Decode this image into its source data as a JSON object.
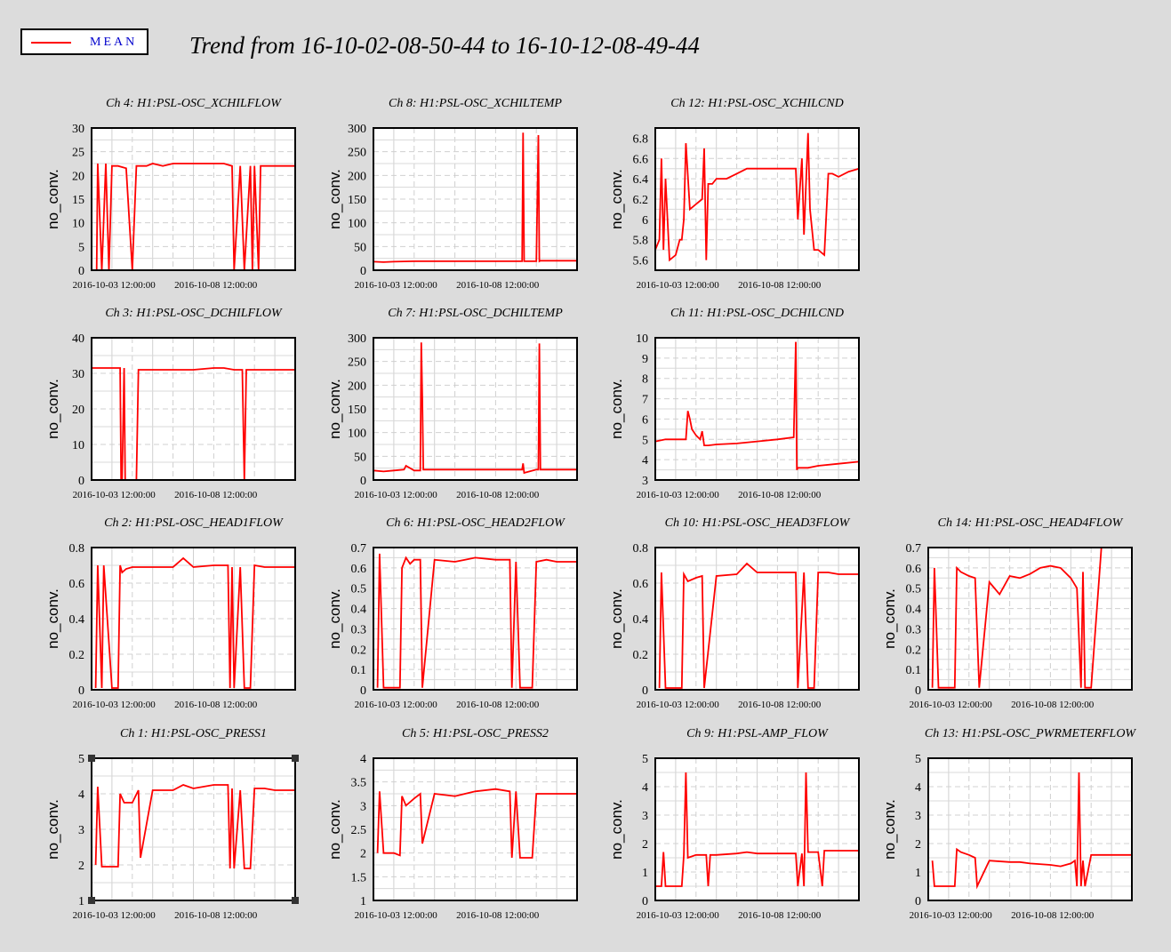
{
  "legend": {
    "label": "MEAN",
    "color": "#ff0000"
  },
  "title": "Trend from 16-10-02-08-50-44 to 16-10-12-08-49-44",
  "chart_data": [
    {
      "type": "line",
      "title": "Ch 4: H1:PSL-OSC_XCHILFLOW",
      "ylabel": "no_conv.",
      "ylim": [
        0,
        30
      ],
      "yticks": [
        0,
        5,
        10,
        15,
        20,
        25,
        30
      ],
      "xticks": [
        "2016-10-03 12:00:00",
        "2016-10-08 12:00:00"
      ],
      "x": [
        0,
        0.25,
        0.3,
        0.5,
        0.7,
        0.85,
        1.0,
        1.3,
        1.7,
        2.0,
        2.2,
        2.4,
        2.7,
        3.0,
        3.5,
        4.0,
        4.5,
        5.0,
        5.5,
        6.0,
        6.5,
        6.9,
        7.0,
        7.3,
        7.5,
        7.8,
        7.9,
        8.0,
        8.2,
        8.3,
        8.5,
        9.0,
        9.5,
        10.0
      ],
      "series": [
        {
          "values": [
            null,
            0,
            22.5,
            0,
            22.5,
            0,
            22,
            22,
            21.5,
            0,
            22,
            22,
            22,
            22.5,
            22,
            22.5,
            22.5,
            22.5,
            22.5,
            22.5,
            22.5,
            22,
            0,
            22,
            0,
            22,
            0,
            22,
            0,
            22,
            22,
            22,
            22,
            22
          ]
        }
      ]
    },
    {
      "type": "line",
      "title": "Ch 8: H1:PSL-OSC_XCHILTEMP",
      "ylabel": "no_conv.",
      "ylim": [
        0,
        300
      ],
      "yticks": [
        0,
        50,
        100,
        150,
        200,
        250,
        300
      ],
      "xticks": [
        "2016-10-03 12:00:00",
        "2016-10-08 12:00:00"
      ],
      "x": [
        0,
        0.5,
        1.0,
        2.0,
        3.0,
        4.0,
        5.0,
        6.0,
        7.0,
        7.3,
        7.35,
        7.4,
        8.0,
        8.1,
        8.15,
        8.2,
        9.0,
        10.0
      ],
      "series": [
        {
          "values": [
            18,
            17,
            18,
            19,
            19,
            19,
            19,
            19,
            19,
            19,
            290,
            19,
            19,
            285,
            19,
            20,
            20,
            20
          ]
        }
      ]
    },
    {
      "type": "line",
      "title": "Ch 12: H1:PSL-OSC_XCHILCND",
      "ylabel": "no_conv.",
      "ylim": [
        5.5,
        6.9
      ],
      "yticks": [
        5.6,
        5.8,
        6,
        6.2,
        6.4,
        6.6,
        6.8
      ],
      "xticks": [
        "2016-10-03 12:00:00",
        "2016-10-08 12:00:00"
      ],
      "x": [
        0,
        0.2,
        0.3,
        0.4,
        0.5,
        0.7,
        1.0,
        1.2,
        1.3,
        1.4,
        1.5,
        1.7,
        2.0,
        2.3,
        2.4,
        2.5,
        2.6,
        2.8,
        3.0,
        3.5,
        4.0,
        4.5,
        5.0,
        5.5,
        6.0,
        6.5,
        6.9,
        7.0,
        7.2,
        7.3,
        7.5,
        7.6,
        7.8,
        8.0,
        8.3,
        8.5,
        8.7,
        9.0,
        9.5,
        10.0
      ],
      "series": [
        {
          "values": [
            5.7,
            5.8,
            6.6,
            5.7,
            6.4,
            5.6,
            5.65,
            5.8,
            5.8,
            6.0,
            6.75,
            6.1,
            6.15,
            6.2,
            6.7,
            5.6,
            6.35,
            6.35,
            6.4,
            6.4,
            6.45,
            6.5,
            6.5,
            6.5,
            6.5,
            6.5,
            6.5,
            6.0,
            6.6,
            5.85,
            6.85,
            6.1,
            5.7,
            5.7,
            5.65,
            6.45,
            6.45,
            6.42,
            6.47,
            6.5
          ]
        }
      ]
    },
    {
      "type": "line",
      "title": "Ch 3: H1:PSL-OSC_DCHILFLOW",
      "ylabel": "no_conv.",
      "ylim": [
        0,
        40
      ],
      "yticks": [
        0,
        10,
        20,
        30,
        40
      ],
      "xticks": [
        "2016-10-03 12:00:00",
        "2016-10-08 12:00:00"
      ],
      "x": [
        0,
        0.5,
        1.0,
        1.4,
        1.45,
        1.5,
        1.6,
        1.65,
        1.7,
        1.9,
        2.2,
        2.3,
        2.4,
        3.0,
        4.0,
        5.0,
        6.0,
        6.5,
        7.0,
        7.4,
        7.5,
        7.6,
        7.9,
        8.0,
        8.5,
        9.0,
        10.0
      ],
      "series": [
        {
          "values": [
            31.5,
            31.5,
            31.5,
            31.5,
            0,
            0,
            31.5,
            0,
            0,
            0,
            0,
            31,
            31,
            31,
            31,
            31,
            31.5,
            31.5,
            31,
            31,
            0,
            31,
            31,
            31,
            31,
            31,
            31
          ]
        }
      ]
    },
    {
      "type": "line",
      "title": "Ch 7: H1:PSL-OSC_DCHILTEMP",
      "ylabel": "no_conv.",
      "ylim": [
        0,
        300
      ],
      "yticks": [
        0,
        50,
        100,
        150,
        200,
        250,
        300
      ],
      "xticks": [
        "2016-10-03 12:00:00",
        "2016-10-08 12:00:00"
      ],
      "x": [
        0,
        0.5,
        1.0,
        1.5,
        1.6,
        2.0,
        2.3,
        2.35,
        2.4,
        2.45,
        2.5,
        3.0,
        4.0,
        5.0,
        6.0,
        7.0,
        7.3,
        7.35,
        7.4,
        8.0,
        8.1,
        8.15,
        8.2,
        9.0,
        10.0
      ],
      "series": [
        {
          "values": [
            20,
            18,
            20,
            22,
            30,
            20,
            20,
            290,
            170,
            22,
            22,
            22,
            22,
            22,
            22,
            22,
            22,
            35,
            15,
            22,
            22,
            288,
            22,
            22,
            22
          ]
        }
      ]
    },
    {
      "type": "line",
      "title": "Ch 11: H1:PSL-OSC_DCHILCND",
      "ylabel": "no_conv.",
      "ylim": [
        3,
        10
      ],
      "yticks": [
        3,
        4,
        5,
        6,
        7,
        8,
        9,
        10
      ],
      "xticks": [
        "2016-10-03 12:00:00",
        "2016-10-08 12:00:00"
      ],
      "x": [
        0,
        0.5,
        1.0,
        1.5,
        1.6,
        1.7,
        1.8,
        2.0,
        2.2,
        2.3,
        2.4,
        2.6,
        3.0,
        4.0,
        5.0,
        6.0,
        6.8,
        6.9,
        6.95,
        7.0,
        7.5,
        8.0,
        9.0,
        10.0
      ],
      "series": [
        {
          "values": [
            4.9,
            5.0,
            5.0,
            5.0,
            6.4,
            6.0,
            5.5,
            5.2,
            5.0,
            5.4,
            4.7,
            4.7,
            4.75,
            4.8,
            4.9,
            5.0,
            5.1,
            9.8,
            3.5,
            3.6,
            3.6,
            3.7,
            3.8,
            3.9
          ]
        }
      ]
    },
    {
      "type": "line",
      "title": "Ch 2: H1:PSL-OSC_HEAD1FLOW",
      "ylabel": "no_conv.",
      "ylim": [
        0,
        0.8
      ],
      "yticks": [
        0,
        0.2,
        0.4,
        0.6,
        0.8
      ],
      "xticks": [
        "2016-10-03 12:00:00",
        "2016-10-08 12:00:00"
      ],
      "x": [
        0,
        0.2,
        0.3,
        0.5,
        0.6,
        1.0,
        1.3,
        1.4,
        1.5,
        1.7,
        2.0,
        3.0,
        4.0,
        4.5,
        5.0,
        6.0,
        6.7,
        6.8,
        6.9,
        7.0,
        7.3,
        7.5,
        7.8,
        8.0,
        8.5,
        9.0,
        10.0
      ],
      "series": [
        {
          "values": [
            null,
            0.01,
            0.7,
            0.01,
            0.7,
            0.01,
            0.01,
            0.7,
            0.66,
            0.68,
            0.69,
            0.69,
            0.69,
            0.74,
            0.69,
            0.7,
            0.7,
            0.01,
            0.69,
            0.01,
            0.69,
            0.01,
            0.01,
            0.7,
            0.69,
            0.69,
            0.69
          ]
        }
      ]
    },
    {
      "type": "line",
      "title": "Ch 6: H1:PSL-OSC_HEAD2FLOW",
      "ylabel": "no_conv.",
      "ylim": [
        0,
        0.7
      ],
      "yticks": [
        0,
        0.1,
        0.2,
        0.3,
        0.4,
        0.5,
        0.6,
        0.7
      ],
      "xticks": [
        "2016-10-03 12:00:00",
        "2016-10-08 12:00:00"
      ],
      "x": [
        0,
        0.2,
        0.3,
        0.5,
        1.0,
        1.3,
        1.4,
        1.6,
        1.8,
        2.0,
        2.3,
        2.4,
        3.0,
        4.0,
        4.5,
        5.0,
        6.0,
        6.7,
        6.8,
        7.0,
        7.2,
        7.5,
        7.8,
        8.0,
        8.5,
        9.0,
        10.0
      ],
      "series": [
        {
          "values": [
            null,
            0.01,
            0.67,
            0.01,
            0.01,
            0.01,
            0.6,
            0.65,
            0.62,
            0.64,
            0.64,
            0.01,
            0.64,
            0.63,
            0.64,
            0.65,
            0.64,
            0.64,
            0.01,
            0.63,
            0.01,
            0.01,
            0.01,
            0.63,
            0.64,
            0.63,
            0.63
          ]
        }
      ]
    },
    {
      "type": "line",
      "title": "Ch 10: H1:PSL-OSC_HEAD3FLOW",
      "ylabel": "no_conv.",
      "ylim": [
        0,
        0.8
      ],
      "yticks": [
        0,
        0.2,
        0.4,
        0.6,
        0.8
      ],
      "xticks": [
        "2016-10-03 12:00:00",
        "2016-10-08 12:00:00"
      ],
      "x": [
        0,
        0.2,
        0.3,
        0.5,
        1.0,
        1.3,
        1.4,
        1.6,
        2.0,
        2.3,
        2.4,
        3.0,
        4.0,
        4.5,
        5.0,
        6.0,
        6.9,
        7.0,
        7.3,
        7.5,
        7.8,
        8.0,
        8.5,
        9.0,
        10.0
      ],
      "series": [
        {
          "values": [
            null,
            0.01,
            0.66,
            0.01,
            0.01,
            0.01,
            0.65,
            0.61,
            0.63,
            0.64,
            0.01,
            0.64,
            0.65,
            0.71,
            0.66,
            0.66,
            0.66,
            0.01,
            0.66,
            0.01,
            0.01,
            0.66,
            0.66,
            0.65,
            0.65
          ]
        }
      ]
    },
    {
      "type": "line",
      "title": "Ch 14: H1:PSL-OSC_HEAD4FLOW",
      "ylabel": "no_conv.",
      "ylim": [
        0,
        0.7
      ],
      "yticks": [
        0,
        0.1,
        0.2,
        0.3,
        0.4,
        0.5,
        0.6,
        0.7
      ],
      "xticks": [
        "2016-10-03 12:00:00",
        "2016-10-08 12:00:00"
      ],
      "x": [
        0,
        0.2,
        0.3,
        0.5,
        1.0,
        1.3,
        1.4,
        1.6,
        2.0,
        2.3,
        2.5,
        3.0,
        3.5,
        4.0,
        4.5,
        5.0,
        5.5,
        6.0,
        6.5,
        7.0,
        7.3,
        7.5,
        7.6,
        7.7,
        8.0,
        8.5,
        9.0,
        10.0
      ],
      "series": [
        {
          "values": [
            null,
            0.01,
            0.6,
            0.01,
            0.01,
            0.01,
            0.6,
            0.58,
            0.56,
            0.55,
            0.01,
            0.53,
            0.47,
            0.56,
            0.55,
            0.57,
            0.6,
            0.61,
            0.6,
            0.55,
            0.5,
            0.01,
            0.58,
            0.01,
            0.01,
            0.7,
            0.7,
            0.7
          ]
        }
      ]
    },
    {
      "type": "line",
      "title": "Ch 1: H1:PSL-OSC_PRESS1",
      "ylabel": "no_conv.",
      "ylim": [
        1,
        5
      ],
      "yticks": [
        1,
        2,
        3,
        4,
        5
      ],
      "xticks": [
        "2016-10-03 12:00:00",
        "2016-10-08 12:00:00"
      ],
      "x": [
        0,
        0.2,
        0.3,
        0.5,
        1.0,
        1.3,
        1.4,
        1.6,
        2.0,
        2.3,
        2.4,
        3.0,
        4.0,
        4.5,
        5.0,
        6.0,
        6.7,
        6.8,
        6.9,
        7.0,
        7.3,
        7.5,
        7.8,
        8.0,
        8.5,
        9.0,
        10.0
      ],
      "series": [
        {
          "values": [
            null,
            2.0,
            4.2,
            1.95,
            1.95,
            1.95,
            4.0,
            3.75,
            3.75,
            4.1,
            2.2,
            4.1,
            4.1,
            4.25,
            4.15,
            4.25,
            4.25,
            1.9,
            4.15,
            1.9,
            4.1,
            1.9,
            1.9,
            4.15,
            4.15,
            4.1,
            4.1
          ]
        }
      ]
    },
    {
      "type": "line",
      "title": "Ch 5: H1:PSL-OSC_PRESS2",
      "ylabel": "no_conv.",
      "ylim": [
        1,
        4
      ],
      "yticks": [
        1,
        1.5,
        2,
        2.5,
        3,
        3.5,
        4
      ],
      "xticks": [
        "2016-10-03 12:00:00",
        "2016-10-08 12:00:00"
      ],
      "x": [
        0,
        0.2,
        0.3,
        0.5,
        1.0,
        1.3,
        1.4,
        1.6,
        2.0,
        2.3,
        2.4,
        3.0,
        4.0,
        4.5,
        5.0,
        6.0,
        6.7,
        6.8,
        7.0,
        7.2,
        7.5,
        7.8,
        8.0,
        8.5,
        9.0,
        10.0
      ],
      "series": [
        {
          "values": [
            null,
            2.0,
            3.3,
            2.0,
            2.0,
            1.95,
            3.2,
            3.0,
            3.15,
            3.25,
            2.2,
            3.25,
            3.2,
            3.25,
            3.3,
            3.35,
            3.3,
            1.9,
            3.3,
            1.9,
            1.9,
            1.9,
            3.25,
            3.25,
            3.25,
            3.25
          ]
        }
      ]
    },
    {
      "type": "line",
      "title": "Ch 9: H1:PSL-AMP_FLOW",
      "ylabel": "no_conv.",
      "ylim": [
        0,
        5
      ],
      "yticks": [
        0,
        1,
        2,
        3,
        4,
        5
      ],
      "xticks": [
        "2016-10-03 12:00:00",
        "2016-10-08 12:00:00"
      ],
      "x": [
        0,
        0.3,
        0.4,
        0.5,
        1.0,
        1.3,
        1.4,
        1.5,
        1.6,
        2.0,
        2.5,
        2.6,
        2.7,
        3.0,
        4.0,
        4.5,
        5.0,
        6.0,
        6.9,
        7.0,
        7.2,
        7.3,
        7.4,
        7.5,
        8.0,
        8.2,
        8.3,
        9.0,
        10.0
      ],
      "series": [
        {
          "values": [
            0.5,
            0.5,
            1.7,
            0.5,
            0.5,
            0.5,
            1.6,
            4.5,
            1.5,
            1.6,
            1.6,
            0.5,
            1.6,
            1.6,
            1.65,
            1.7,
            1.65,
            1.65,
            1.65,
            0.5,
            1.65,
            0.5,
            4.5,
            1.7,
            1.7,
            0.5,
            1.75,
            1.75,
            1.75
          ]
        }
      ]
    },
    {
      "type": "line",
      "title": "Ch 13: H1:PSL-OSC_PWRMETERFLOW",
      "ylabel": "no_conv.",
      "ylim": [
        0,
        5
      ],
      "yticks": [
        0,
        1,
        2,
        3,
        4,
        5
      ],
      "xticks": [
        "2016-10-03 12:00:00",
        "2016-10-08 12:00:00"
      ],
      "x": [
        0,
        0.2,
        0.3,
        0.5,
        1.0,
        1.3,
        1.4,
        1.6,
        2.0,
        2.3,
        2.4,
        3.0,
        4.0,
        4.5,
        5.0,
        6.0,
        6.5,
        7.0,
        7.2,
        7.3,
        7.4,
        7.5,
        7.6,
        7.7,
        8.0,
        8.5,
        9.0,
        10.0
      ],
      "series": [
        {
          "values": [
            null,
            1.4,
            0.5,
            0.5,
            0.5,
            0.5,
            1.8,
            1.7,
            1.6,
            1.5,
            0.5,
            1.4,
            1.35,
            1.35,
            1.3,
            1.25,
            1.2,
            1.3,
            1.4,
            0.5,
            4.5,
            0.5,
            1.4,
            0.5,
            1.6,
            1.6,
            1.6,
            1.6
          ]
        }
      ]
    }
  ]
}
